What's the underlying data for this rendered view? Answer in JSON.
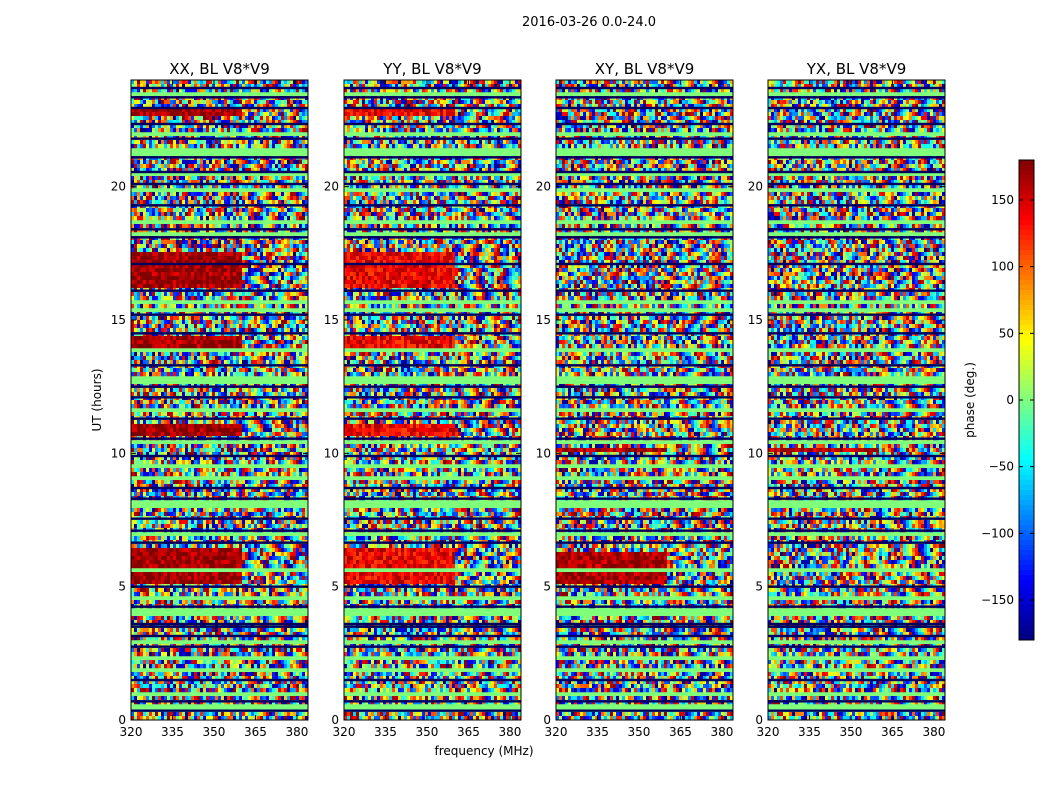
{
  "chart_data": {
    "type": "heatmap",
    "suptitle": "2016-03-26 0.0-24.0",
    "xlabel": "frequency (MHz)",
    "ylabel": "UT (hours)",
    "xlim": [
      320,
      384
    ],
    "ylim": [
      0,
      24
    ],
    "xticks": [
      320,
      335,
      350,
      365,
      380
    ],
    "yticks": [
      0,
      5,
      10,
      15,
      20
    ],
    "colormap": "jet",
    "colorbar": {
      "label": "phase (deg.)",
      "range": [
        -180,
        180
      ],
      "ticks": [
        150,
        100,
        50,
        0,
        -50,
        -100,
        -150
      ],
      "tick_labels": [
        "150",
        "100",
        "50",
        "0",
        "−50",
        "−100",
        "−150"
      ]
    },
    "panels": [
      {
        "title": "XX, BL V8*V9",
        "coherent_bands_hours": [
          [
            5.1,
            6.4
          ],
          [
            10.7,
            11.1
          ],
          [
            14.0,
            14.4
          ],
          [
            16.2,
            17.6
          ],
          [
            22.6,
            22.9
          ]
        ],
        "band_phase_deg": 170
      },
      {
        "title": "YY, BL V8*V9",
        "coherent_bands_hours": [
          [
            5.1,
            6.4
          ],
          [
            10.7,
            11.1
          ],
          [
            14.0,
            14.4
          ],
          [
            16.2,
            17.6
          ],
          [
            22.6,
            22.9
          ]
        ],
        "band_phase_deg": 140
      },
      {
        "title": "XY, BL V8*V9",
        "coherent_bands_hours": [
          [
            5.1,
            6.3
          ],
          [
            10.0,
            10.2
          ]
        ],
        "band_phase_deg": 165
      },
      {
        "title": "YX, BL V8*V9",
        "coherent_bands_hours": [
          [
            10.0,
            10.2
          ]
        ],
        "band_phase_deg": 160
      }
    ],
    "flagged_rows_hours": [
      0.35,
      0.7,
      1.5,
      2.75,
      3.15,
      3.5,
      3.6,
      4.25,
      5.0,
      6.65,
      7.1,
      7.55,
      8.3,
      8.7,
      9.9,
      10.55,
      11.3,
      12.1,
      12.5,
      13.3,
      14.5,
      15.2,
      16.1,
      17.1,
      18.1,
      18.4,
      19.3,
      20.1,
      20.55,
      21.1,
      21.8,
      22.35,
      22.95,
      23.35,
      23.7
    ],
    "zero_phase_rows_hours": [
      0.45,
      1.0,
      1.85,
      2.3,
      2.9,
      4.05,
      4.6,
      5.6,
      7.0,
      8.1,
      9.1,
      9.5,
      10.4,
      11.6,
      12.75,
      13.9,
      15.35,
      15.7,
      18.25,
      18.7,
      19.85,
      20.45,
      21.3,
      22.0,
      23.45
    ]
  }
}
